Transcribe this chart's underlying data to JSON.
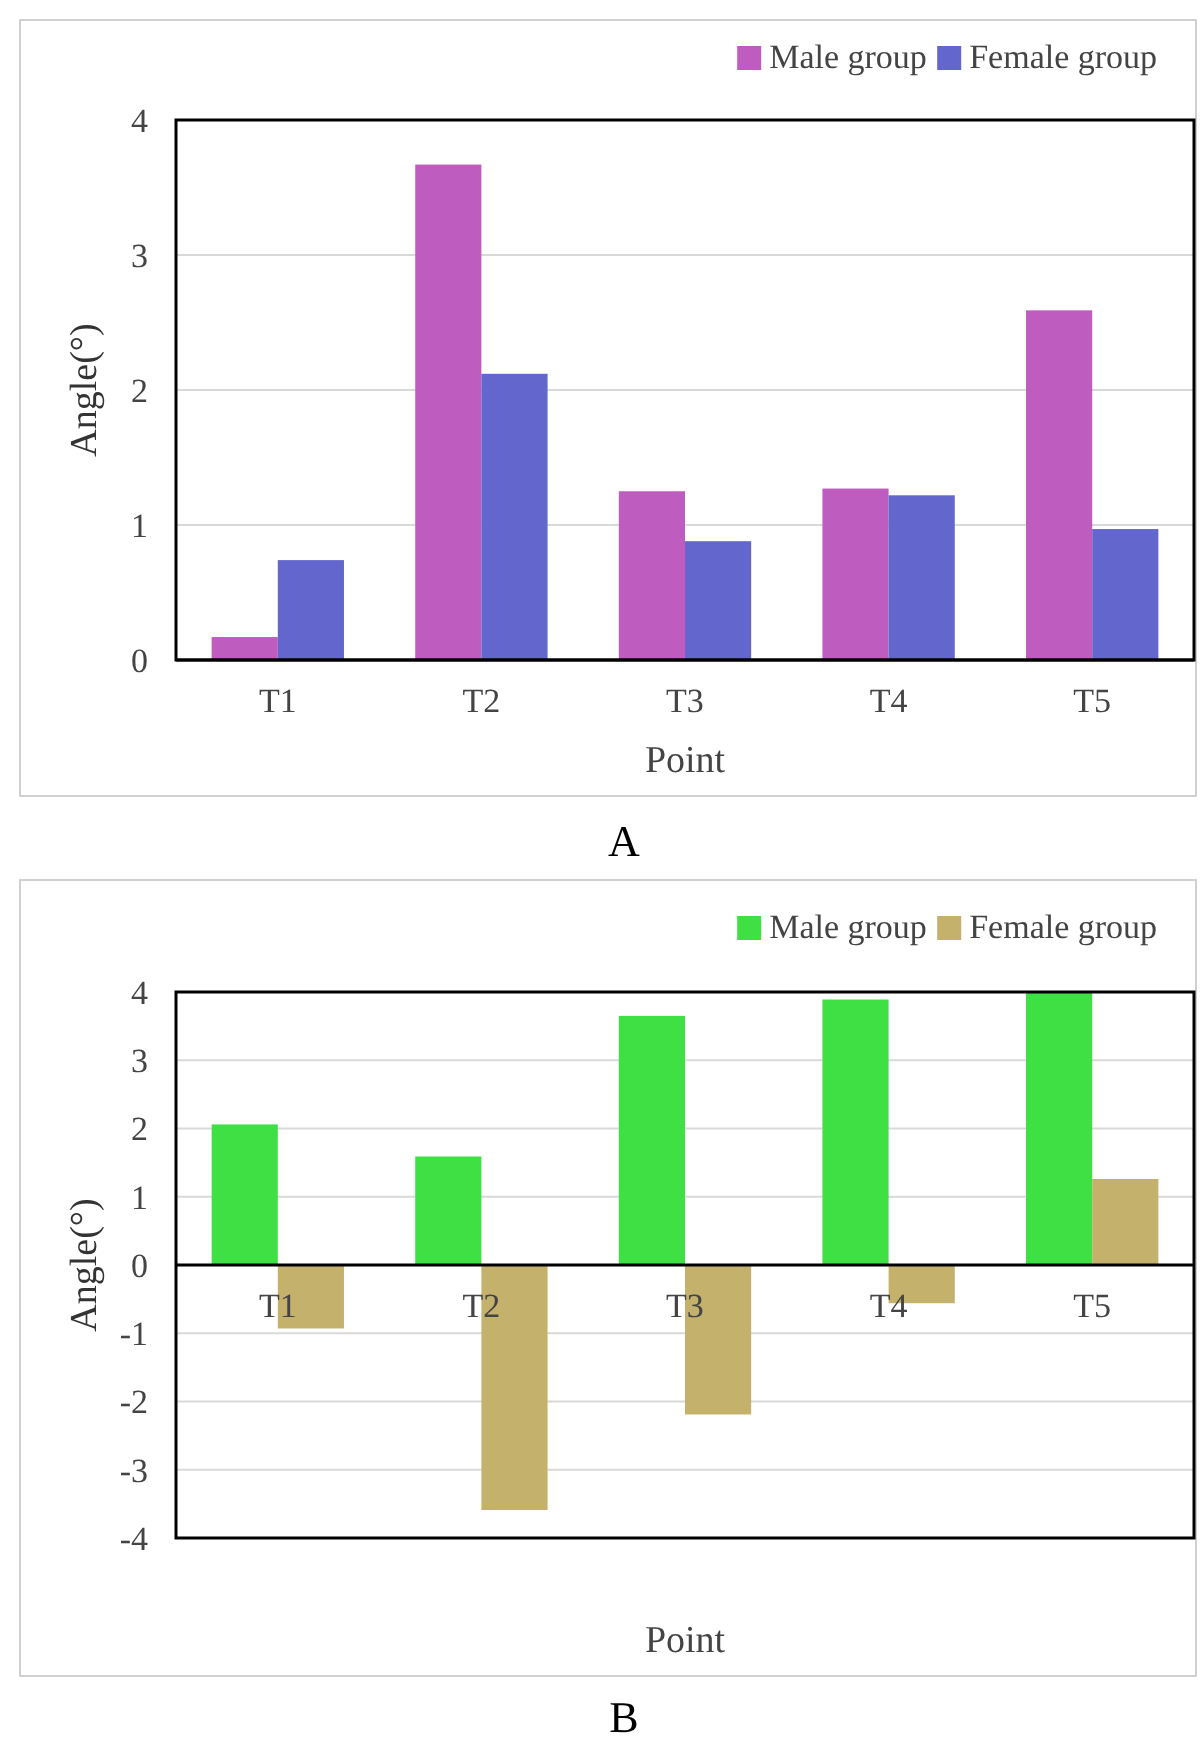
{
  "chart_data": [
    {
      "type": "bar",
      "xlabel": "Point",
      "ylabel": "Angle(°)",
      "categories": [
        "T1",
        "T2",
        "T3",
        "T4",
        "T5"
      ],
      "series": [
        {
          "name": "Male group",
          "color": "#bf5cbf",
          "values": [
            0.17,
            3.67,
            1.25,
            1.27,
            2.59
          ]
        },
        {
          "name": "Female group",
          "color": "#6366cc",
          "values": [
            0.74,
            2.12,
            0.88,
            1.22,
            0.97
          ]
        }
      ],
      "ylim": [
        0,
        4
      ],
      "yticks": [
        0,
        1,
        2,
        3,
        4
      ],
      "grid": "y",
      "legend": "top right",
      "annotations": [
        "A"
      ]
    },
    {
      "type": "bar",
      "xlabel": "Point",
      "ylabel": "Angle(°)",
      "categories": [
        "T1",
        "T2",
        "T3",
        "T4",
        "T5"
      ],
      "series": [
        {
          "name": "Male group",
          "color": "#3ee044",
          "values": [
            2.06,
            1.59,
            3.65,
            3.89,
            4.0
          ]
        },
        {
          "name": "Female group",
          "color": "#c4b16c",
          "values": [
            -0.93,
            -3.59,
            -2.19,
            -0.56,
            1.26
          ]
        }
      ],
      "ylim": [
        -4,
        4
      ],
      "yticks": [
        -4,
        -3,
        -2,
        -1,
        0,
        1,
        2,
        3,
        4
      ],
      "grid": "y",
      "legend": "top right",
      "annotations": [
        "B"
      ]
    }
  ]
}
